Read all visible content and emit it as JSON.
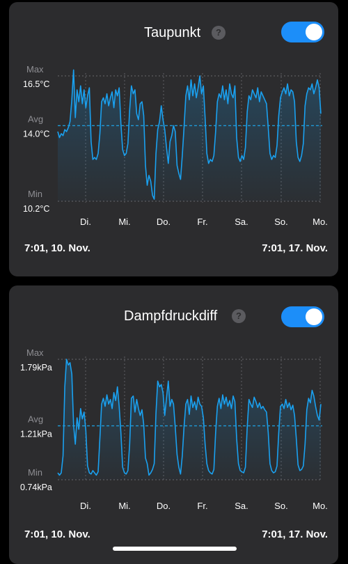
{
  "cards": [
    {
      "title": "Taupunkt",
      "help_label": "?",
      "toggle_on": true,
      "start_label": "7:01,  10. Nov.",
      "end_label": "7:01,  17. Nov.",
      "chart_data": {
        "type": "line",
        "unit": "°C",
        "series": [
          {
            "values": [
              13.7,
              13.4,
              13.6,
              13.5,
              13.8,
              13.7,
              13.9,
              14.2,
              15.3,
              16.8,
              14.4,
              15.8,
              15.2,
              16.0,
              15.1,
              15.8,
              14.9,
              15.5,
              15.9,
              13.2,
              12.3,
              12.4,
              12.3,
              12.6,
              13.6,
              15.2,
              15.4,
              15.1,
              15.6,
              15.0,
              15.4,
              15.7,
              14.9,
              15.8,
              15.5,
              15.9,
              14.1,
              12.8,
              12.5,
              12.6,
              13.1,
              14.8,
              16.0,
              15.6,
              15.8,
              14.6,
              14.3,
              15.1,
              15.2,
              14.5,
              12.0,
              11.0,
              11.5,
              11.2,
              10.5,
              10.3,
              12.6,
              13.8,
              14.2,
              15.0,
              14.3,
              13.8,
              12.9,
              12.1,
              13.2,
              13.5,
              14.0,
              13.7,
              12.0,
              11.6,
              11.3,
              12.5,
              13.9,
              15.5,
              16.0,
              15.3,
              16.3,
              15.5,
              16.1,
              15.4,
              15.9,
              16.5,
              15.6,
              16.0,
              14.4,
              12.6,
              12.1,
              12.3,
              12.2,
              12.5,
              13.7,
              15.2,
              15.6,
              15.4,
              16.0,
              15.3,
              15.8,
              15.1,
              16.1,
              15.6,
              15.4,
              16.0,
              13.4,
              12.4,
              12.2,
              12.5,
              12.3,
              12.9,
              14.7,
              15.5,
              15.3,
              15.8,
              15.6,
              15.4,
              15.9,
              15.2,
              15.7,
              15.5,
              15.3,
              15.1,
              13.9,
              12.6,
              12.3,
              12.5,
              12.4,
              13.0,
              14.5,
              15.4,
              15.7,
              15.9,
              15.6,
              16.1,
              15.5,
              15.8,
              15.7,
              15.2,
              13.2,
              12.4,
              12.2,
              12.5,
              13.1,
              15.0,
              15.6,
              15.9,
              15.8,
              16.1,
              15.6,
              15.9,
              16.3,
              15.9,
              14.6
            ]
          }
        ],
        "y_max_label": "Max",
        "y_max_value": "16.5°C",
        "y_avg_label": "Avg",
        "y_avg_value": "14.0°C",
        "y_min_label": "Min",
        "y_min_value": "10.2°C",
        "ymax": 16.5,
        "yavg": 14.0,
        "ymin": 10.2,
        "x_tick_labels": [
          "Di.",
          "Mi.",
          "Do.",
          "Fr.",
          "Sa.",
          "So.",
          "Mo."
        ],
        "grid": true
      }
    },
    {
      "title": "Dampfdruckdiff",
      "help_label": "?",
      "toggle_on": true,
      "start_label": "7:01,  10. Nov.",
      "end_label": "7:01,  17. Nov.",
      "chart_data": {
        "type": "line",
        "unit": "kPa",
        "series": [
          {
            "values": [
              0.8,
              0.78,
              0.8,
              0.95,
              1.55,
              1.79,
              1.74,
              1.76,
              1.66,
              1.22,
              1.05,
              1.28,
              1.18,
              1.36,
              1.27,
              1.33,
              1.17,
              0.86,
              0.8,
              0.79,
              0.82,
              0.8,
              0.78,
              0.81,
              1.1,
              1.4,
              1.45,
              1.38,
              1.48,
              1.4,
              1.44,
              1.36,
              1.5,
              1.43,
              1.55,
              1.38,
              1.15,
              0.85,
              0.8,
              0.79,
              0.82,
              1.05,
              1.45,
              1.47,
              1.33,
              1.44,
              1.36,
              1.3,
              1.35,
              1.22,
              0.93,
              0.88,
              0.78,
              0.8,
              0.83,
              0.88,
              1.32,
              1.6,
              1.55,
              1.57,
              1.5,
              1.3,
              1.45,
              1.6,
              1.38,
              1.44,
              1.4,
              1.2,
              0.96,
              0.85,
              0.79,
              0.95,
              1.2,
              1.4,
              1.44,
              1.31,
              1.47,
              1.37,
              1.42,
              1.35,
              1.46,
              1.4,
              1.38,
              1.28,
              1.05,
              0.88,
              0.82,
              0.8,
              0.79,
              0.83,
              1.15,
              1.38,
              1.45,
              1.36,
              1.48,
              1.4,
              1.46,
              1.38,
              1.43,
              1.36,
              1.47,
              1.42,
              1.1,
              0.88,
              0.82,
              0.81,
              0.8,
              0.85,
              1.2,
              1.44,
              1.4,
              1.37,
              1.46,
              1.42,
              1.37,
              1.41,
              1.36,
              1.38,
              1.35,
              1.33,
              1.15,
              0.88,
              0.82,
              0.8,
              0.81,
              0.86,
              1.15,
              1.38,
              1.4,
              1.36,
              1.44,
              1.37,
              1.41,
              1.35,
              1.39,
              1.3,
              1.1,
              0.87,
              0.82,
              0.83,
              0.86,
              1.05,
              1.35,
              1.45,
              1.41,
              1.52,
              1.47,
              1.38,
              1.3,
              1.26,
              1.4
            ]
          }
        ],
        "y_max_label": "Max",
        "y_max_value": "1.79kPa",
        "y_avg_label": "Avg",
        "y_avg_value": "1.21kPa",
        "y_min_label": "Min",
        "y_min_value": "0.74kPa",
        "ymax": 1.79,
        "yavg": 1.21,
        "ymin": 0.74,
        "x_tick_labels": [
          "Di.",
          "Mi.",
          "Do.",
          "Fr.",
          "Sa.",
          "So.",
          "Mo."
        ],
        "grid": true
      }
    }
  ],
  "colors": {
    "accent": "#1c8ef9",
    "line": "#1aa1f0",
    "avg_line": "#1e9bd8",
    "card_bg": "#2c2c2e",
    "grid": "#5c5c60",
    "axis_label": "#8e8e93"
  }
}
